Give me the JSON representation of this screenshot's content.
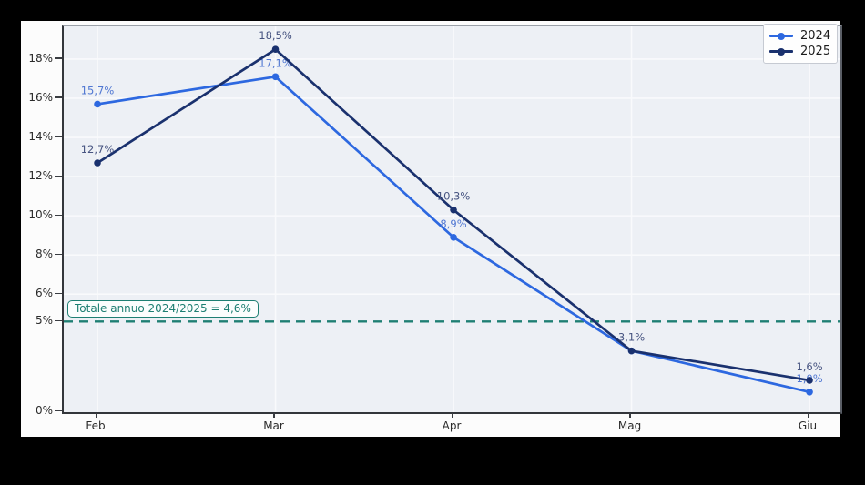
{
  "colors": {
    "background": "#000000",
    "figure_bg": "#fcfcfc",
    "plot_bg": "#edf0f5",
    "gridline": "#f9fafc",
    "tick_text": "#2b2b2b",
    "teal_accent": "#1e7f73"
  },
  "chart_data": {
    "type": "line",
    "x_categories": [
      "Feb",
      "Mar",
      "Apr",
      "Mag",
      "Giu"
    ],
    "series": [
      {
        "name": "2024",
        "color": "#2d68e0",
        "label_color": "#5077d2",
        "values": [
          15.7,
          17.1,
          8.9,
          3.1,
          1.0
        ],
        "point_labels": [
          "15,7%",
          "17,1%",
          "8,9%",
          null,
          "1,0%"
        ]
      },
      {
        "name": "2025",
        "color": "#1a316e",
        "label_color": "#465380",
        "values": [
          12.7,
          18.5,
          10.3,
          3.1,
          1.6
        ],
        "point_labels": [
          "12,7%",
          "18,5%",
          "10,3%",
          "3,1%",
          "1,6%"
        ]
      }
    ],
    "y_ticks": [
      {
        "label": "0%",
        "value": 0
      },
      {
        "label": "5%",
        "value": 4.6
      },
      {
        "label": "6%",
        "value": 6
      },
      {
        "label": "8%",
        "value": 8
      },
      {
        "label": "10%",
        "value": 10
      },
      {
        "label": "12%",
        "value": 12
      },
      {
        "label": "14%",
        "value": 14
      },
      {
        "label": "16%",
        "value": 16
      },
      {
        "label": "18%",
        "value": 18
      }
    ],
    "ylim": [
      0,
      19.7
    ],
    "grid": true,
    "legend_position": "upper-right",
    "reference_line": {
      "value": 4.6,
      "style": "dashed",
      "color": "#1e7f73",
      "label": "Totale annuo 2024/2025 = 4,6%"
    }
  }
}
